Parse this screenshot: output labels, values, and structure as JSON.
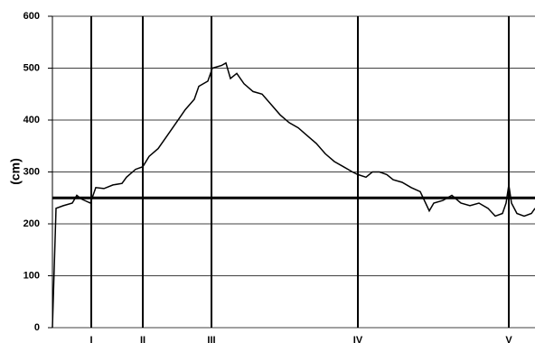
{
  "chart_data": {
    "type": "line",
    "y_label": "(cm)",
    "x": [
      0,
      4,
      12,
      22,
      27,
      32,
      42,
      48,
      57,
      67,
      77,
      82,
      92,
      100,
      107,
      117,
      127,
      137,
      147,
      157,
      162,
      172,
      177,
      187,
      192,
      197,
      204,
      212,
      222,
      232,
      242,
      252,
      262,
      272,
      282,
      292,
      302,
      312,
      322,
      332,
      338,
      347,
      354,
      362,
      370,
      377,
      387,
      397,
      407,
      417,
      422,
      432,
      442,
      452,
      462,
      472,
      482,
      490,
      498,
      502,
      505,
      508,
      514,
      522,
      530,
      534
    ],
    "series": [
      {
        "color": "#000000",
        "values": [
          0,
          230,
          235,
          240,
          255,
          248,
          240,
          270,
          268,
          275,
          278,
          290,
          305,
          310,
          330,
          345,
          370,
          395,
          420,
          440,
          465,
          475,
          500,
          505,
          510,
          480,
          490,
          470,
          455,
          450,
          430,
          410,
          395,
          385,
          370,
          355,
          335,
          320,
          310,
          300,
          295,
          290,
          300,
          300,
          295,
          285,
          280,
          270,
          262,
          225,
          240,
          245,
          255,
          240,
          235,
          240,
          230,
          215,
          220,
          240,
          275,
          240,
          220,
          215,
          220,
          230
        ]
      }
    ],
    "xlim": [
      0,
      534
    ],
    "ylim": [
      0,
      600
    ],
    "yticks": [
      0,
      100,
      200,
      300,
      400,
      500,
      600
    ],
    "grid": true,
    "reference_line": 250,
    "markers": [
      {
        "label": "I",
        "x": 43
      },
      {
        "label": "II",
        "x": 100
      },
      {
        "label": "III",
        "x": 176
      },
      {
        "label": "IV",
        "x": 338
      },
      {
        "label": "V",
        "x": 505
      }
    ]
  }
}
